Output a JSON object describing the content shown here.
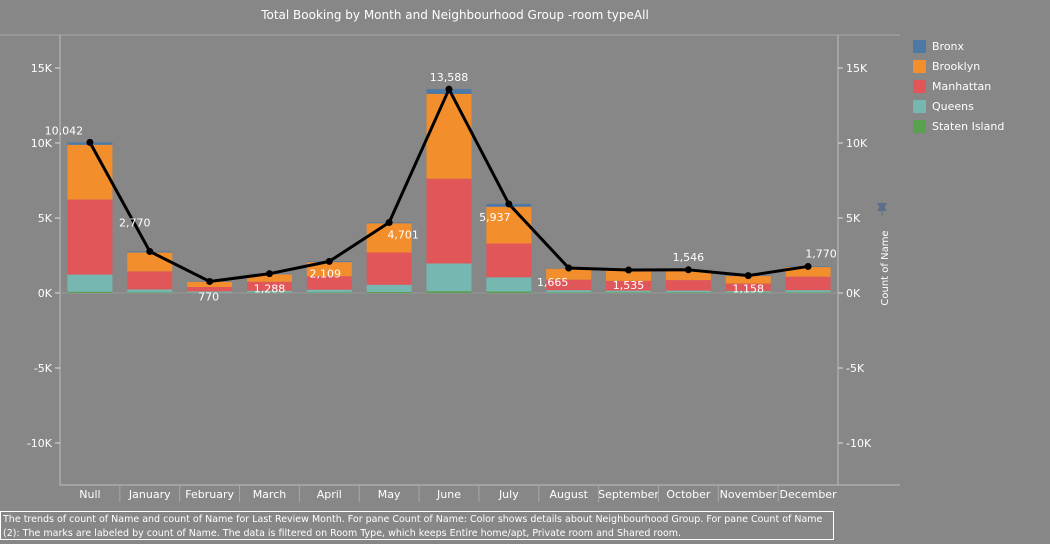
{
  "chart_data": {
    "type": "bar",
    "title": "Total Booking by Month and Neighbourhood Group -room typeAll",
    "categories": [
      "Null",
      "January",
      "February",
      "March",
      "April",
      "May",
      "June",
      "July",
      "August",
      "September",
      "October",
      "November",
      "December"
    ],
    "series": [
      {
        "name": "Staten Island",
        "color": "#59a14f",
        "values": [
          80,
          40,
          20,
          30,
          40,
          70,
          120,
          100,
          40,
          40,
          40,
          30,
          40
        ]
      },
      {
        "name": "Queens",
        "color": "#76b7b2",
        "values": [
          1150,
          200,
          80,
          120,
          180,
          480,
          1850,
          950,
          150,
          120,
          120,
          100,
          150
        ]
      },
      {
        "name": "Manhattan",
        "color": "#e15759",
        "values": [
          5000,
          1200,
          300,
          600,
          900,
          2150,
          5650,
          2250,
          700,
          650,
          700,
          500,
          900
        ]
      },
      {
        "name": "Brooklyn",
        "color": "#f28e2b",
        "values": [
          3650,
          1260,
          350,
          500,
          940,
          1950,
          5650,
          2450,
          740,
          700,
          650,
          500,
          640
        ]
      },
      {
        "name": "Bronx",
        "color": "#4e79a7",
        "values": [
          162,
          70,
          20,
          38,
          49,
          51,
          318,
          187,
          35,
          25,
          36,
          28,
          40
        ]
      }
    ],
    "line": {
      "name": "Count of Name",
      "values": [
        10042,
        2770,
        770,
        1288,
        2109,
        4701,
        13588,
        5937,
        1665,
        1535,
        1546,
        1158,
        1770
      ]
    },
    "data_labels": [
      "10,042",
      "2,770",
      "770",
      "1,288",
      "2,109",
      "4,701",
      "13,588",
      "5,937",
      "1,665",
      "1,535",
      "1,546",
      "1,158",
      "1,770"
    ],
    "ylim": [
      -12800,
      17200
    ],
    "yticks": [
      -10000,
      -5000,
      0,
      5000,
      10000,
      15000
    ],
    "ytick_labels": [
      "-10K",
      "-5K",
      "0K",
      "5K",
      "10K",
      "15K"
    ],
    "right_axis_label": "Count of Name",
    "legend_position": "right"
  },
  "legend": {
    "items": [
      {
        "label": "Bronx",
        "color": "#4e79a7"
      },
      {
        "label": "Brooklyn",
        "color": "#f28e2b"
      },
      {
        "label": "Manhattan",
        "color": "#e15759"
      },
      {
        "label": "Queens",
        "color": "#76b7b2"
      },
      {
        "label": "Staten Island",
        "color": "#59a14f"
      }
    ]
  },
  "caption": "The trends of count of Name and count of Name for Last Review Month.  For pane Count of Name:  Color shows details about Neighbourhood Group.  For pane Count of Name (2):  The marks are labeled by count of Name. The data is filtered on Room Type, which keeps Entire home/apt, Private room and Shared room."
}
